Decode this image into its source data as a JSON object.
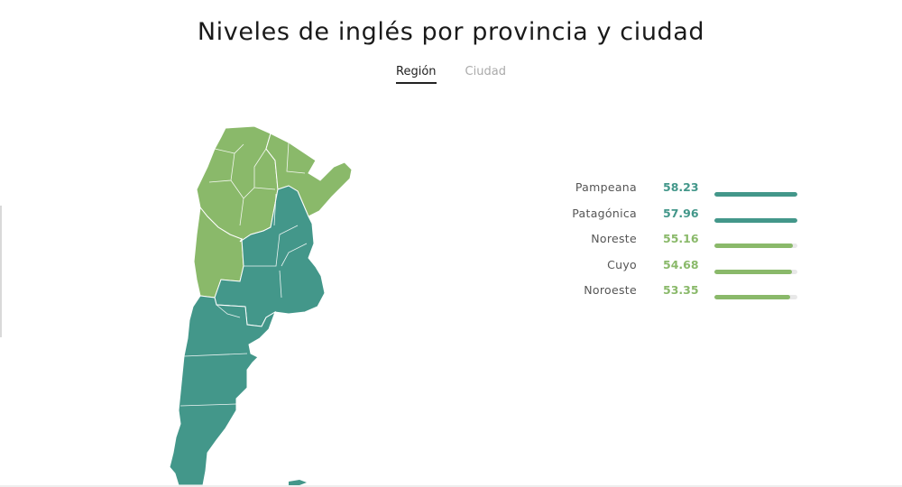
{
  "title": "Niveles de inglés por provincia y ciudad",
  "tabs": [
    {
      "label": "Región",
      "active": true
    },
    {
      "label": "Ciudad",
      "active": false
    }
  ],
  "colors": {
    "high": "#43978a",
    "low": "#8ab96a",
    "track": "#e8e8e8"
  },
  "ranking": {
    "max": 58.23,
    "rows": [
      {
        "name": "Pampeana",
        "value": "58.23",
        "score": 58.23,
        "level": "high"
      },
      {
        "name": "Patagónica",
        "value": "57.96",
        "score": 57.96,
        "level": "high"
      },
      {
        "name": "Noreste",
        "value": "55.16",
        "score": 55.16,
        "level": "low"
      },
      {
        "name": "Cuyo",
        "value": "54.68",
        "score": 54.68,
        "level": "low"
      },
      {
        "name": "Noroeste",
        "value": "53.35",
        "score": 53.35,
        "level": "low"
      }
    ]
  },
  "map": {
    "regions": [
      {
        "key": "noroeste",
        "level": "low"
      },
      {
        "key": "noreste",
        "level": "low"
      },
      {
        "key": "cuyo",
        "level": "low"
      },
      {
        "key": "pampeana",
        "level": "high"
      },
      {
        "key": "patagonica",
        "level": "high"
      }
    ]
  }
}
